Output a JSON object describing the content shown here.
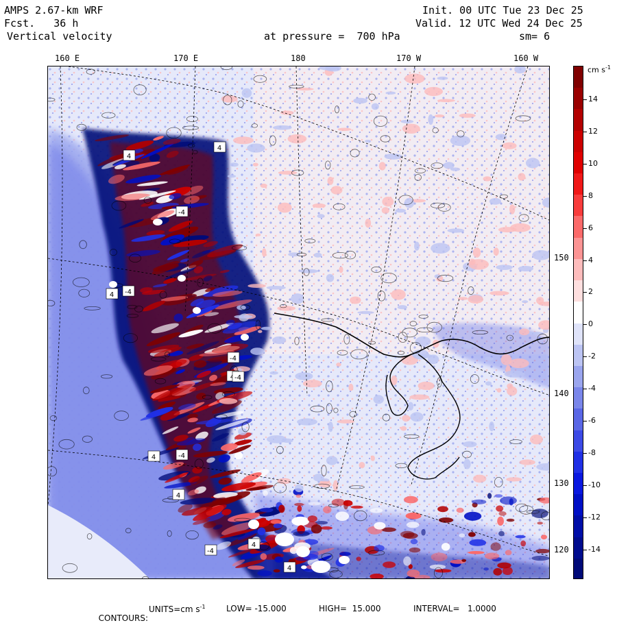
{
  "header": {
    "model": "AMPS 2.67-km WRF",
    "fcst": "Fcst.   36 h",
    "field": "Vertical velocity",
    "init": "Init. 00 UTC Tue 23 Dec 25",
    "valid": "Valid. 12 UTC Wed 24 Dec 25",
    "pressure": "at pressure =  700 hPa",
    "smoothing": "sm= 6"
  },
  "map": {
    "top_longitude_labels": [
      "160 E",
      "170 E",
      "180",
      "170 W",
      "160 W"
    ],
    "right_latitude_labels": [
      "150 W",
      "140 W",
      "130 W",
      "120 W"
    ],
    "contour_labels": [
      "4",
      "-4",
      "4",
      "-4",
      "4",
      "-4",
      "4",
      "-4",
      "4",
      "-4",
      "4",
      "4",
      "-4",
      "4"
    ]
  },
  "colorbar": {
    "units_label": "cm s",
    "units_exponent": "-1",
    "tick_labels": [
      "14",
      "12",
      "10",
      "8",
      "6",
      "4",
      "2",
      "0",
      "-2",
      "-4",
      "-6",
      "-8",
      "-10",
      "-12",
      "-14"
    ],
    "colors": [
      "#800000",
      "#9a0000",
      "#b30000",
      "#cc0000",
      "#e00000",
      "#f01818",
      "#f83c3c",
      "#fb6a6a",
      "#fc9494",
      "#fdbcbc",
      "#fedfdf",
      "#ffffff",
      "#dfe3f9",
      "#bcc4f3",
      "#9aa5ee",
      "#7a86ea",
      "#5a67e6",
      "#3c4ae6",
      "#2030e6",
      "#0a18e0",
      "#0010c6",
      "#000ea8",
      "#000c8e",
      "#000a78"
    ]
  },
  "footer": {
    "contours_label": "CONTOURS:",
    "units_label": "UNITS=cm s",
    "units_exponent": "-1",
    "low": "LOW= -15.000",
    "high": "HIGH=  15.000",
    "interval": "INTERVAL=   1.0000"
  }
}
